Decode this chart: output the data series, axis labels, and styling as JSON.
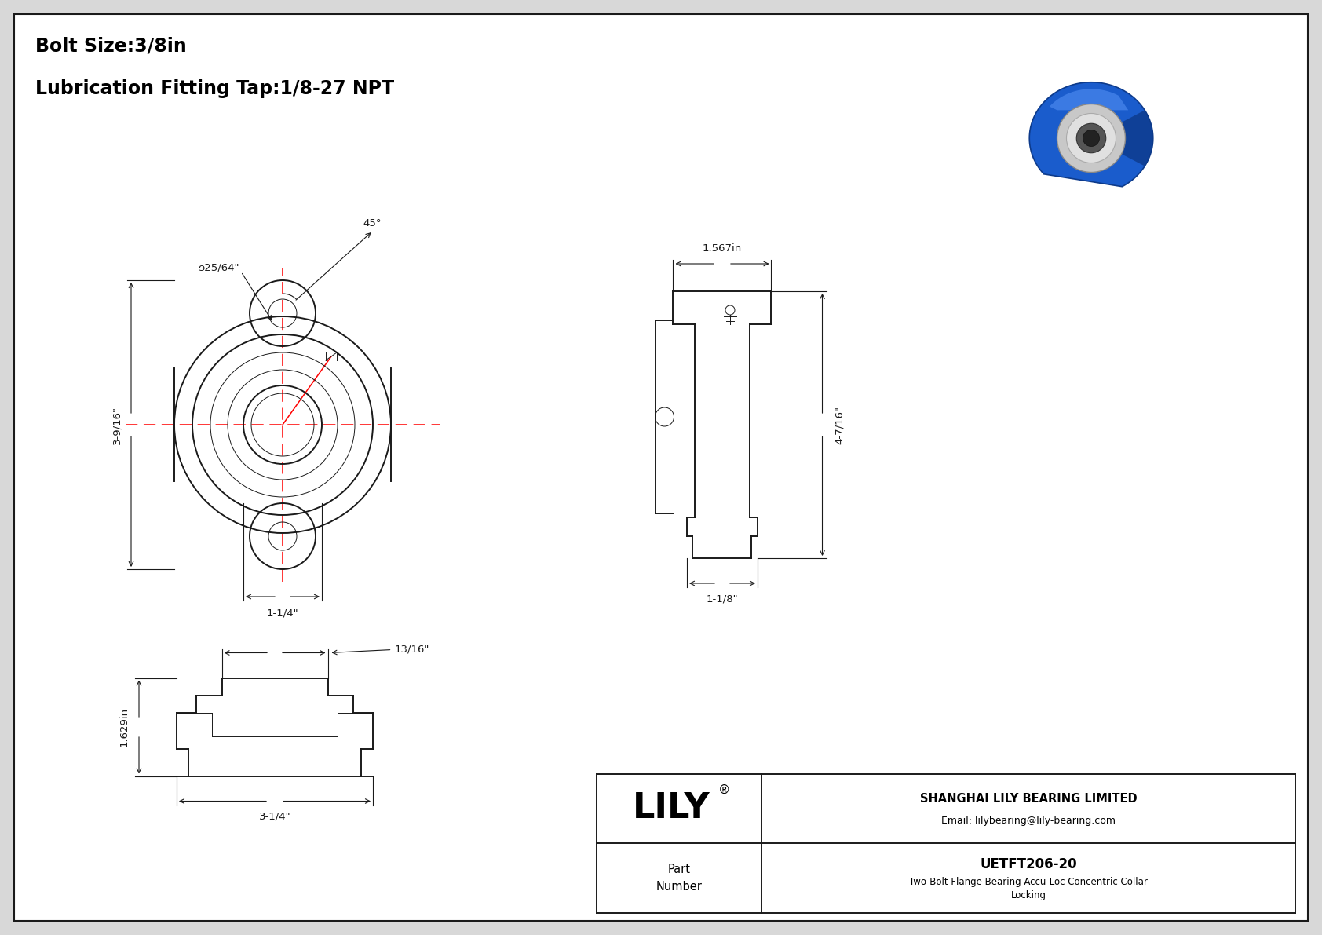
{
  "bg_color": "#d8d8d8",
  "drawing_bg": "#ffffff",
  "line_color": "#1a1a1a",
  "red_color": "#ff0000",
  "title_line1": "Bolt Size:3/8in",
  "title_line2": "Lubrication Fitting Tap:1/8-27 NPT",
  "dim_front_height": "3-9/16\"",
  "dim_front_width": "1-1/4\"",
  "dim_bolt_hole": "ɘ25/64\"",
  "dim_angle": "45°",
  "dim_side_height": "4-7/16\"",
  "dim_side_width1": "1.567in",
  "dim_side_width2": "1-1/8\"",
  "dim_bottom_height": "1.629in",
  "dim_bottom_width1": "13/16\"",
  "dim_bottom_width2": "3-1/4\"",
  "company_name": "SHANGHAI LILY BEARING LIMITED",
  "company_email": "Email: lilybearing@lily-bearing.com",
  "part_number": "UETFT206-20",
  "part_desc1": "Two-Bolt Flange Bearing Accu-Loc Concentric Collar",
  "part_desc2": "Locking",
  "lily_text": "LILY",
  "part_label": "Part\nNumber"
}
